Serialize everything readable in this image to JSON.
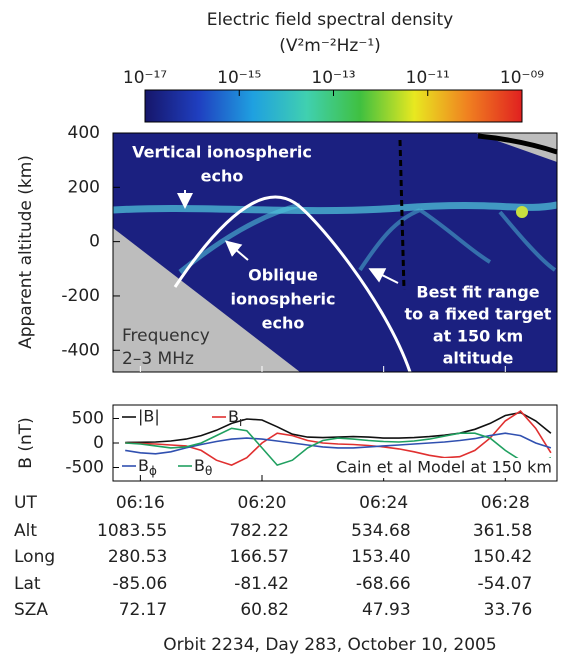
{
  "chart_data": [
    {
      "type": "heatmap",
      "title": "Electric field spectral density",
      "colorbar_label": "(V²m⁻²Hz⁻¹)",
      "clim": [
        1e-17,
        1e-09
      ],
      "log_color": true,
      "cticks": [
        {
          "value": 1e-17,
          "label": "10⁻¹⁷"
        },
        {
          "value": 1e-15,
          "label": "10⁻¹⁵"
        },
        {
          "value": 1e-13,
          "label": "10⁻¹³"
        },
        {
          "value": 1e-11,
          "label": "10⁻¹¹"
        },
        {
          "value": 1e-09,
          "label": "10⁻⁰⁹"
        }
      ],
      "colormap": [
        "#16166a",
        "#1f3fc0",
        "#1fa0e0",
        "#40d0b0",
        "#40c040",
        "#e8e820",
        "#f08020",
        "#e02020"
      ],
      "ylabel": "Apparent altitude (km)",
      "ylim": [
        -480,
        400
      ],
      "yticks": [
        -400,
        -200,
        0,
        200,
        400
      ],
      "annotations": [
        {
          "lines": [
            "Vertical ionospheric",
            "echo"
          ]
        },
        {
          "lines": [
            "Oblique",
            "ionospheric",
            "echo"
          ]
        },
        {
          "lines": [
            "Best fit range",
            "to a fixed target",
            "at 150 km",
            "altitude"
          ]
        },
        {
          "lines": [
            "Frequency",
            "2–3 MHz"
          ]
        }
      ]
    },
    {
      "type": "line",
      "ylabel": "B (nT)",
      "xlabel": "UT",
      "xlim": [
        15.1,
        29.7
      ],
      "xticks": [
        {
          "value": 16,
          "label": "06:16"
        },
        {
          "value": 20,
          "label": "06:20"
        },
        {
          "value": 24,
          "label": "06:24"
        },
        {
          "value": 28,
          "label": "06:28"
        }
      ],
      "ylim": [
        -775,
        775
      ],
      "yticks": [
        -500,
        0,
        500
      ],
      "annotation": "Cain et al Model at 150 km",
      "x": [
        15.5,
        16,
        16.5,
        17,
        17.5,
        18,
        18.5,
        19,
        19.5,
        20,
        20.5,
        21,
        21.5,
        22,
        22.5,
        23,
        23.5,
        24,
        24.5,
        25,
        25.5,
        26,
        26.5,
        27,
        27.5,
        28,
        28.5,
        29,
        29.5
      ],
      "series": [
        {
          "name": "|B|",
          "color": "#111111",
          "values": [
            10,
            15,
            20,
            40,
            80,
            150,
            260,
            400,
            490,
            470,
            330,
            180,
            120,
            110,
            120,
            130,
            120,
            100,
            100,
            110,
            130,
            160,
            200,
            280,
            400,
            560,
            620,
            450,
            200
          ]
        },
        {
          "name": "Br",
          "color": "#e03030",
          "values": [
            0,
            -10,
            -20,
            -40,
            -60,
            -150,
            -350,
            -450,
            -300,
            0,
            200,
            150,
            50,
            0,
            -20,
            -30,
            -50,
            -80,
            -120,
            -180,
            -250,
            -300,
            -280,
            -150,
            100,
            450,
            650,
            300,
            -200
          ]
        },
        {
          "name": "Bϕ",
          "color": "#3050b0",
          "values": [
            -150,
            -200,
            -220,
            -180,
            -100,
            -30,
            30,
            80,
            100,
            80,
            40,
            0,
            -40,
            -80,
            -100,
            -100,
            -80,
            -60,
            -40,
            -20,
            0,
            20,
            50,
            90,
            150,
            200,
            150,
            0,
            -100
          ]
        },
        {
          "name": "Bθ",
          "color": "#20a060",
          "values": [
            0,
            -20,
            -60,
            -100,
            -80,
            0,
            150,
            300,
            250,
            -100,
            -450,
            -350,
            -100,
            50,
            100,
            80,
            50,
            30,
            20,
            40,
            80,
            140,
            200,
            200,
            100,
            -150,
            -350,
            -450,
            -300
          ]
        }
      ]
    }
  ],
  "ephemeris": [
    {
      "label": "Alt",
      "values": [
        "1083.55",
        "782.22",
        "534.68",
        "361.58"
      ]
    },
    {
      "label": "Long",
      "values": [
        "280.53",
        "166.57",
        "153.40",
        "150.42"
      ]
    },
    {
      "label": "Lat",
      "values": [
        "-85.06",
        "-81.42",
        "-68.66",
        "-54.07"
      ]
    },
    {
      "label": "SZA",
      "values": [
        "72.17",
        "60.82",
        "47.93",
        "33.76"
      ]
    }
  ],
  "caption": "Orbit 2234, Day 283, October 10, 2005"
}
